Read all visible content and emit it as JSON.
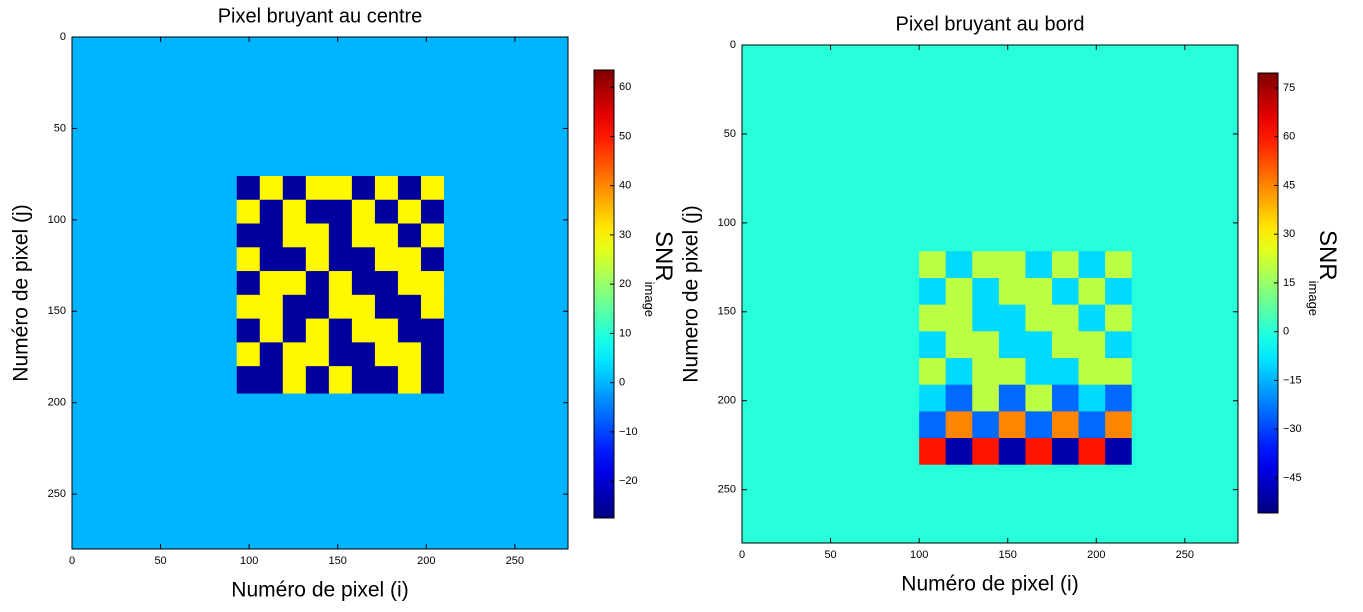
{
  "chart_data": [
    {
      "type": "heatmap",
      "title": "Pixel bruyant au centre",
      "x_label": "Numéro de pixel (i)",
      "y_label": "Numéro de pixel (j)",
      "colorbar_label": "SNR",
      "colorbar_label_sub": "image",
      "colormap": "jet",
      "xlim": [
        0,
        280
      ],
      "ylim": [
        280,
        0
      ],
      "xticks": [
        0,
        50,
        100,
        150,
        200,
        250
      ],
      "yticks": [
        0,
        50,
        100,
        150,
        200,
        250
      ],
      "clim": [
        -27.5,
        63.5
      ],
      "cticks": [
        {
          "value": -20,
          "label": "−20"
        },
        {
          "value": -10,
          "label": "−10"
        },
        0,
        10,
        20,
        30,
        40,
        50,
        60
      ],
      "xbins": [
        0,
        93,
        106,
        119,
        132,
        145,
        158,
        171,
        184,
        197,
        210,
        280
      ],
      "ybins": [
        0,
        76,
        89,
        102,
        115,
        128,
        141,
        154,
        167,
        180,
        195,
        280
      ],
      "z": [
        [
          0,
          0,
          0,
          0,
          0,
          0,
          0,
          0,
          0,
          0,
          0
        ],
        [
          0,
          -25,
          30,
          -25,
          30,
          30,
          -25,
          30,
          -25,
          30,
          0
        ],
        [
          0,
          30,
          -25,
          30,
          -25,
          -25,
          30,
          -25,
          30,
          -25,
          0
        ],
        [
          0,
          -25,
          -25,
          30,
          30,
          -25,
          30,
          30,
          -25,
          30,
          0
        ],
        [
          0,
          30,
          -25,
          -25,
          30,
          -25,
          -25,
          30,
          30,
          -25,
          0
        ],
        [
          0,
          -25,
          30,
          30,
          -25,
          30,
          -25,
          -25,
          30,
          30,
          0
        ],
        [
          0,
          30,
          30,
          -25,
          -25,
          30,
          30,
          -25,
          -25,
          30,
          0
        ],
        [
          0,
          -25,
          30,
          -25,
          30,
          -25,
          30,
          30,
          -25,
          -25,
          0
        ],
        [
          0,
          30,
          -25,
          30,
          30,
          -25,
          -25,
          30,
          30,
          -25,
          0
        ],
        [
          0,
          -25,
          -25,
          30,
          -25,
          30,
          -25,
          -25,
          30,
          -25,
          0
        ],
        [
          0,
          0,
          0,
          0,
          0,
          0,
          0,
          0,
          0,
          0,
          0
        ]
      ]
    },
    {
      "type": "heatmap",
      "title": "Pixel bruyant au bord",
      "x_label": "Numéro de pixel (i)",
      "y_label": "Numero de pixel (j)",
      "colorbar_label": "SNR",
      "colorbar_label_sub": "image",
      "colormap": "jet",
      "xlim": [
        0,
        280
      ],
      "ylim": [
        280,
        0
      ],
      "xticks": [
        0,
        50,
        100,
        150,
        200,
        250
      ],
      "yticks": [
        0,
        50,
        100,
        150,
        200,
        250
      ],
      "clim": [
        -55.8,
        79.6
      ],
      "cticks": [
        {
          "value": -45,
          "label": "−45"
        },
        {
          "value": -30,
          "label": "−30"
        },
        {
          "value": -15,
          "label": "−15"
        },
        0,
        15,
        30,
        45,
        60,
        75
      ],
      "xbins": [
        0,
        100,
        115,
        130,
        145,
        160,
        175,
        190,
        205,
        220,
        280
      ],
      "ybins": [
        0,
        116,
        131,
        146,
        161,
        176,
        191,
        206,
        221,
        236,
        280
      ],
      "z": [
        [
          0,
          0,
          0,
          0,
          0,
          0,
          0,
          0,
          0,
          0
        ],
        [
          0,
          20,
          -10,
          20,
          20,
          -10,
          20,
          -10,
          20,
          0
        ],
        [
          0,
          -10,
          20,
          -10,
          20,
          20,
          -10,
          20,
          -10,
          0
        ],
        [
          0,
          20,
          20,
          -10,
          -10,
          20,
          20,
          -10,
          20,
          0
        ],
        [
          0,
          -10,
          20,
          20,
          -10,
          -10,
          20,
          20,
          -10,
          0
        ],
        [
          0,
          20,
          -10,
          20,
          20,
          -10,
          -10,
          20,
          20,
          0
        ],
        [
          0,
          -10,
          -25,
          20,
          -25,
          20,
          -25,
          -10,
          -25,
          0
        ],
        [
          0,
          -25,
          45,
          -25,
          45,
          -25,
          45,
          -25,
          45,
          0
        ],
        [
          0,
          60,
          -50,
          60,
          -50,
          60,
          -50,
          60,
          -50,
          0
        ],
        [
          0,
          0,
          0,
          0,
          0,
          0,
          0,
          0,
          0,
          0
        ]
      ]
    }
  ]
}
